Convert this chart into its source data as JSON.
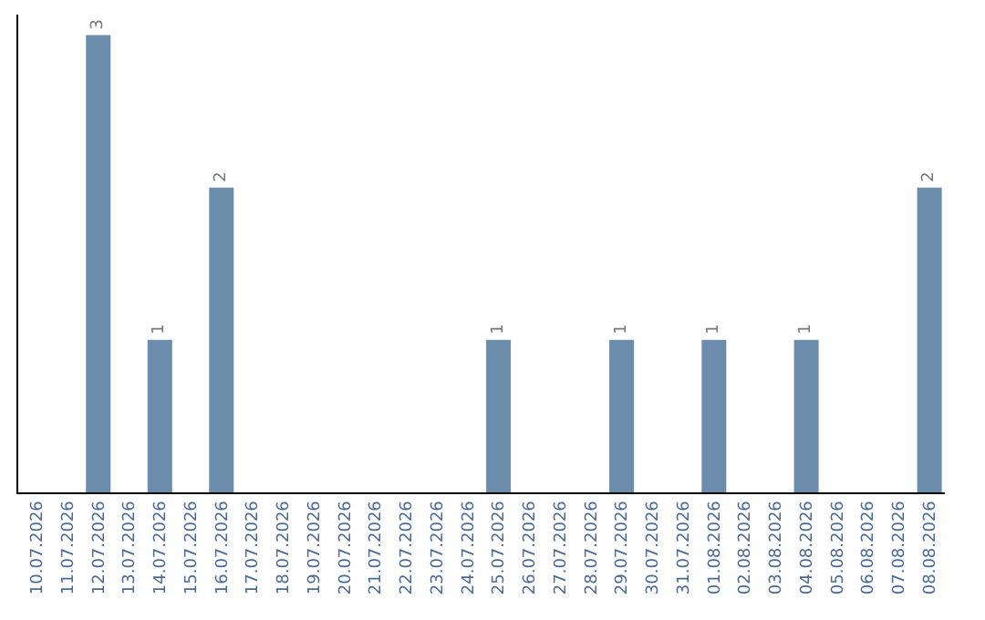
{
  "chart_data": {
    "type": "bar",
    "categories": [
      "10.07.2026",
      "11.07.2026",
      "12.07.2026",
      "13.07.2026",
      "14.07.2026",
      "15.07.2026",
      "16.07.2026",
      "17.07.2026",
      "18.07.2026",
      "19.07.2026",
      "20.07.2026",
      "21.07.2026",
      "22.07.2026",
      "23.07.2026",
      "24.07.2026",
      "25.07.2026",
      "26.07.2026",
      "27.07.2026",
      "28.07.2026",
      "29.07.2026",
      "30.07.2026",
      "31.07.2026",
      "01.08.2026",
      "02.08.2026",
      "03.08.2026",
      "04.08.2026",
      "05.08.2026",
      "06.08.2026",
      "07.08.2026",
      "08.08.2026"
    ],
    "values": [
      0,
      0,
      3,
      0,
      1,
      0,
      2,
      0,
      0,
      0,
      0,
      0,
      0,
      0,
      0,
      1,
      0,
      0,
      0,
      1,
      0,
      0,
      1,
      0,
      0,
      1,
      0,
      0,
      0,
      2
    ],
    "value_labels": [
      null,
      null,
      "3",
      null,
      "1",
      null,
      "2",
      null,
      null,
      null,
      null,
      null,
      null,
      null,
      null,
      "1",
      null,
      null,
      null,
      "1",
      null,
      null,
      "1",
      null,
      null,
      "1",
      null,
      null,
      null,
      "2"
    ],
    "color": "#6b8cab",
    "grid": false,
    "legend": false,
    "tick_labels": "x"
  }
}
